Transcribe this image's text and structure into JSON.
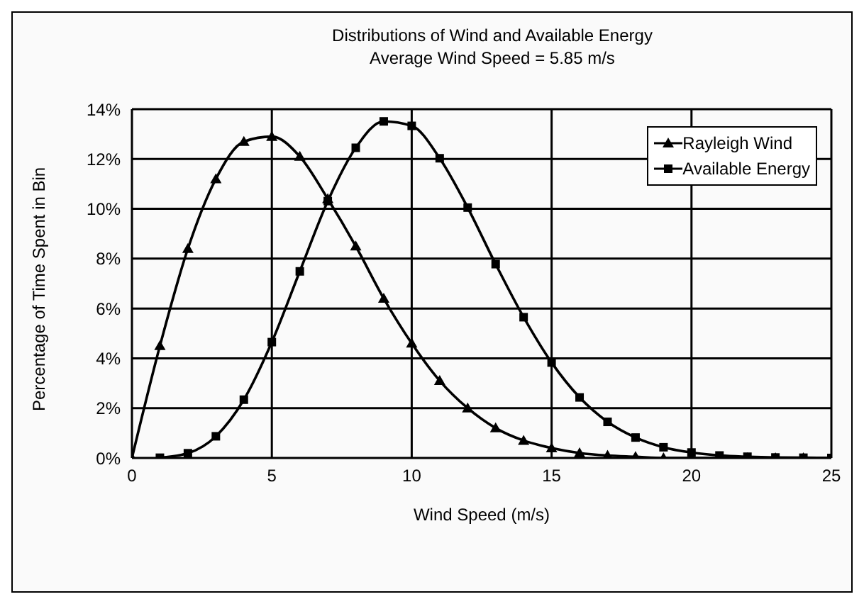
{
  "chart_data": {
    "type": "line",
    "title": "Distributions of Wind and Available Energy",
    "subtitle": "Average Wind Speed = 5.85 m/s",
    "xlabel": "Wind Speed (m/s)",
    "ylabel": "Percentage of Time Spent in Bin",
    "x": [
      0,
      1,
      2,
      3,
      4,
      5,
      6,
      7,
      8,
      9,
      10,
      11,
      12,
      13,
      14,
      15,
      16,
      17,
      18,
      19,
      20,
      21,
      22,
      23,
      24,
      25
    ],
    "series": [
      {
        "name": "Rayleigh Wind",
        "color": "#000000",
        "marker": "triangle",
        "values": [
          0,
          4.5,
          8.4,
          11.2,
          12.7,
          12.9,
          12.1,
          10.4,
          8.5,
          6.4,
          4.6,
          3.1,
          2.0,
          1.2,
          0.7,
          0.4,
          0.2,
          0.1,
          0.05,
          0,
          0,
          0,
          0,
          0,
          0,
          0
        ]
      },
      {
        "name": "Available Energy",
        "color": "#000000",
        "marker": "square",
        "values": [
          null,
          0.01,
          0.19,
          0.87,
          2.34,
          4.65,
          7.49,
          10.31,
          12.45,
          13.51,
          13.33,
          12.03,
          10.05,
          7.78,
          5.65,
          3.83,
          2.43,
          1.45,
          0.82,
          0.43,
          0.22,
          0.1,
          0.05,
          0.02,
          0.01,
          0
        ]
      }
    ],
    "xlim": [
      0,
      25
    ],
    "xticks": [
      0,
      5,
      10,
      15,
      20,
      25
    ],
    "ylim": [
      0,
      14
    ],
    "yticks": [
      {
        "value": 0,
        "label": "0%"
      },
      {
        "value": 2,
        "label": "2%"
      },
      {
        "value": 4,
        "label": "4%"
      },
      {
        "value": 6,
        "label": "6%"
      },
      {
        "value": 8,
        "label": "8%"
      },
      {
        "value": 10,
        "label": "10%"
      },
      {
        "value": 12,
        "label": "12%"
      },
      {
        "value": 14,
        "label": "14%"
      }
    ],
    "grid": true,
    "legend": "top right",
    "line_style": "solid"
  }
}
